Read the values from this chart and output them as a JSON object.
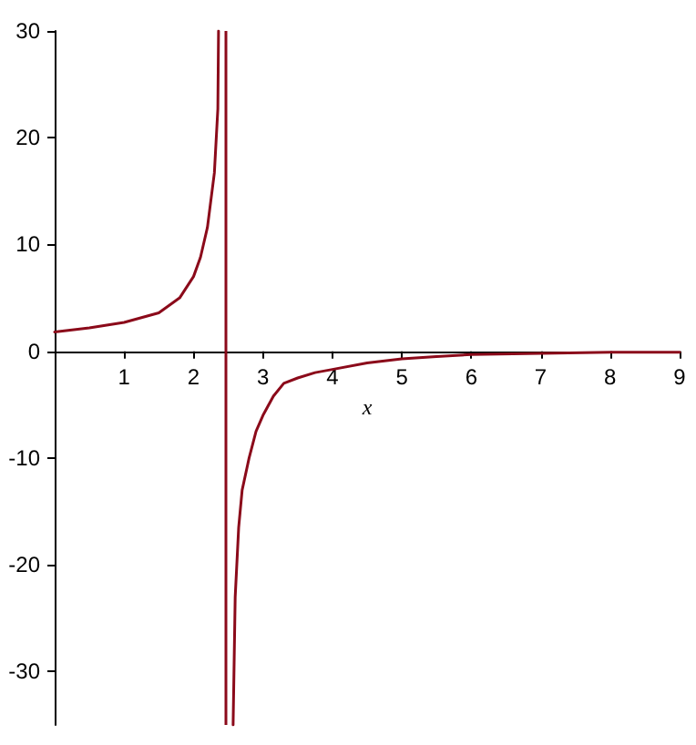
{
  "chart_data": {
    "type": "line",
    "xlabel": "x",
    "xlim": [
      0,
      9
    ],
    "ylim": [
      -35,
      30
    ],
    "xticks": [
      1,
      2,
      3,
      4,
      5,
      6,
      7,
      8,
      9
    ],
    "yticks": [
      -30,
      -20,
      -10,
      0,
      10,
      20,
      30
    ],
    "marker": "none",
    "line_style": "solid",
    "series": [
      {
        "color": "#8b0a1a",
        "x": [
          0,
          0.5,
          1,
          1.5,
          1.8,
          2,
          2.1,
          2.2,
          2.3,
          2.35,
          2.36,
          2.46,
          2.57,
          2.6,
          2.65,
          2.7,
          2.8,
          2.9,
          3,
          3.15,
          3.3,
          3.5,
          3.75,
          4,
          4.5,
          5,
          5.5,
          6,
          7,
          8,
          9
        ],
        "values": [
          1.8,
          2.2,
          2.7,
          3.6,
          5,
          7,
          8.8,
          11.6,
          16.7,
          22.7,
          30,
          null,
          -35,
          -23,
          -16.5,
          -13,
          -10,
          -7.5,
          -6,
          -4.2,
          -3,
          -2.5,
          -2,
          -1.7,
          -1.1,
          -0.7,
          -0.5,
          -0.3,
          -0.2,
          -0.1,
          -0.1
        ]
      }
    ],
    "ref_lines": [
      {
        "axis": "x",
        "value": 2.47,
        "color": "#8b0a1a",
        "line_style": "solid"
      }
    ]
  }
}
